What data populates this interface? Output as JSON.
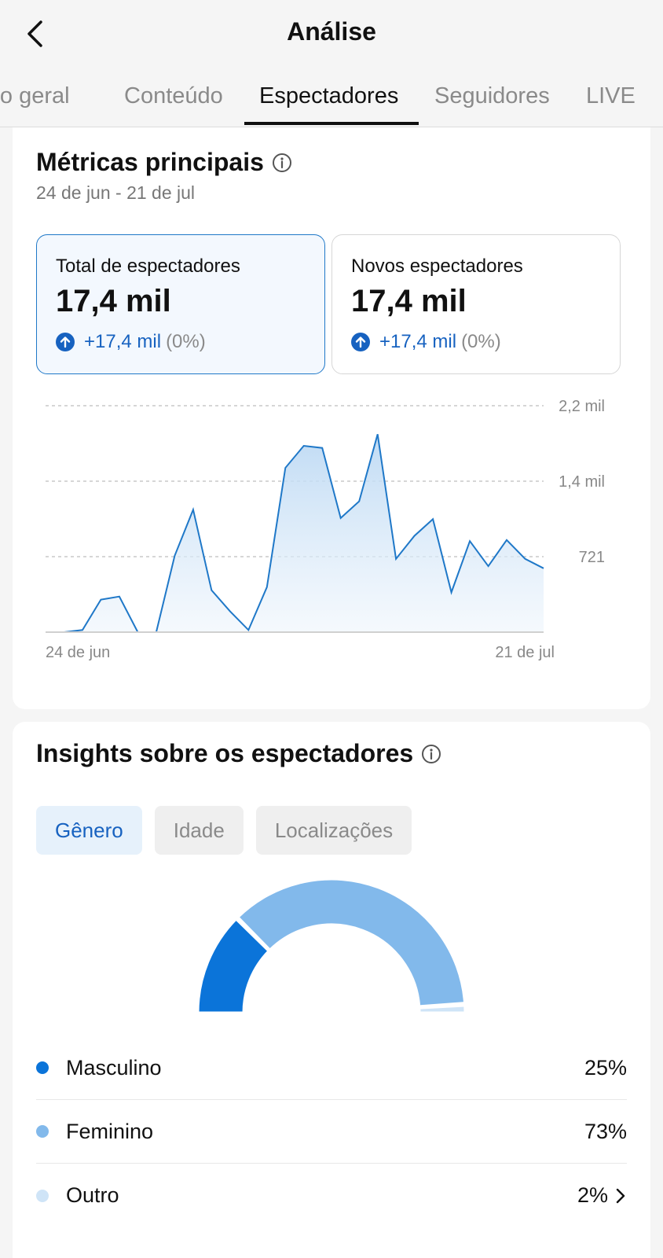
{
  "header": {
    "title": "Análise"
  },
  "tabs": [
    {
      "label": "Visão geral"
    },
    {
      "label": "Conteúdo"
    },
    {
      "label": "Espectadores"
    },
    {
      "label": "Seguidores"
    },
    {
      "label": "LIVE"
    }
  ],
  "key_metrics": {
    "title": "Métricas principais",
    "date_range": "24 de jun - 21 de jul",
    "cards": [
      {
        "label": "Total de espectadores",
        "value": "17,4 mil",
        "change": "+17,4 mil",
        "change_pct": "(0%)"
      },
      {
        "label": "Novos espectadores",
        "value": "17,4 mil",
        "change": "+17,4 mil",
        "change_pct": "(0%)"
      }
    ]
  },
  "chart_data": {
    "type": "area",
    "x_labels": [
      "24 de jun",
      "21 de jul"
    ],
    "y_tick_labels": [
      "2,2 mil",
      "1,4 mil",
      "721"
    ],
    "y_ticks": [
      2163,
      1442,
      721
    ],
    "ylim": [
      0,
      2163
    ],
    "grid": true,
    "values": [
      0,
      0,
      20,
      310,
      340,
      0,
      0,
      730,
      1170,
      400,
      200,
      20,
      430,
      1570,
      1780,
      1760,
      1090,
      1250,
      1890,
      700,
      920,
      1080,
      380,
      870,
      630,
      880,
      700,
      610
    ]
  },
  "audience": {
    "title": "Insights sobre os espectadores",
    "subtabs": [
      {
        "label": "Gênero"
      },
      {
        "label": "Idade"
      },
      {
        "label": "Localizações"
      }
    ],
    "gender": [
      {
        "label": "Masculino",
        "value": "25%",
        "share": 0.25,
        "color": "#0b74d9"
      },
      {
        "label": "Feminino",
        "value": "73%",
        "share": 0.73,
        "color": "#82b9eb"
      },
      {
        "label": "Outro",
        "value": "2%",
        "share": 0.02,
        "color": "#cfe4f7"
      }
    ]
  }
}
